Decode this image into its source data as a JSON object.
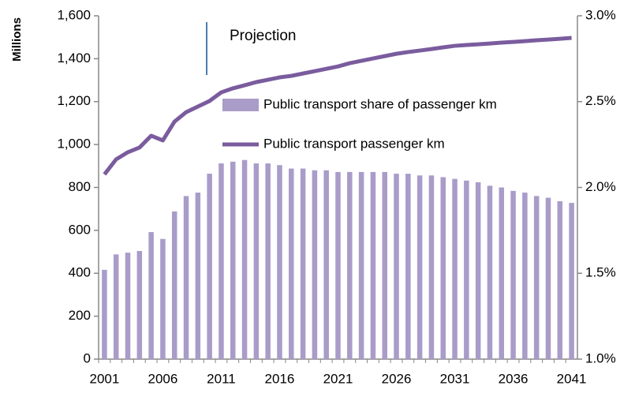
{
  "chart_data": {
    "type": "combo",
    "annotation": "Projection",
    "y_label": "Millions",
    "categories": [
      "2001",
      null,
      null,
      null,
      null,
      "2006",
      null,
      null,
      null,
      null,
      "2011",
      null,
      null,
      null,
      null,
      "2016",
      null,
      null,
      null,
      null,
      "2021",
      null,
      null,
      null,
      null,
      "2026",
      null,
      null,
      null,
      null,
      "2031",
      null,
      null,
      null,
      null,
      "2036",
      null,
      null,
      null,
      null,
      "2041"
    ],
    "series": [
      {
        "name": "Public transport share of passenger km",
        "type": "bar",
        "axis": "y2",
        "color": "#a99cc9",
        "values": [
          1.52,
          1.61,
          1.62,
          1.63,
          1.74,
          1.7,
          1.86,
          1.95,
          1.97,
          2.08,
          2.14,
          2.15,
          2.16,
          2.14,
          2.14,
          2.13,
          2.11,
          2.11,
          2.1,
          2.1,
          2.09,
          2.09,
          2.09,
          2.09,
          2.09,
          2.08,
          2.08,
          2.07,
          2.07,
          2.06,
          2.05,
          2.04,
          2.03,
          2.01,
          2.0,
          1.98,
          1.97,
          1.95,
          1.94,
          1.92,
          1.91
        ]
      },
      {
        "name": "Public transport passenger km",
        "type": "line",
        "axis": "y",
        "color": "#7a5c9e",
        "values": [
          861,
          931,
          964,
          986,
          1041,
          1019,
          1107,
          1151,
          1177,
          1203,
          1243,
          1262,
          1276,
          1291,
          1302,
          1313,
          1320,
          1331,
          1342,
          1353,
          1364,
          1379,
          1390,
          1401,
          1412,
          1423,
          1431,
          1438,
          1445,
          1453,
          1460,
          1464,
          1467,
          1471,
          1475,
          1478,
          1482,
          1486,
          1489,
          1493,
          1497
        ]
      }
    ],
    "ylim": [
      0,
      1600
    ],
    "yticks": [
      0,
      200,
      400,
      600,
      800,
      {
        "value": 1000,
        "label": "1,000"
      },
      {
        "value": 1200,
        "label": "1,200"
      },
      {
        "value": 1400,
        "label": "1,400"
      },
      {
        "value": 1600,
        "label": "1,600"
      }
    ],
    "y2lim": [
      1.0,
      3.0
    ],
    "y2ticks": [
      {
        "value": 1.0,
        "label": "1.0%"
      },
      {
        "value": 1.5,
        "label": "1.5%"
      },
      {
        "value": 2.0,
        "label": "2.0%"
      },
      {
        "value": 2.5,
        "label": "2.5%"
      },
      {
        "value": 3.0,
        "label": "3.0%"
      }
    ],
    "axis_color": "#888888",
    "annotation_color": "#4a7eb0"
  }
}
